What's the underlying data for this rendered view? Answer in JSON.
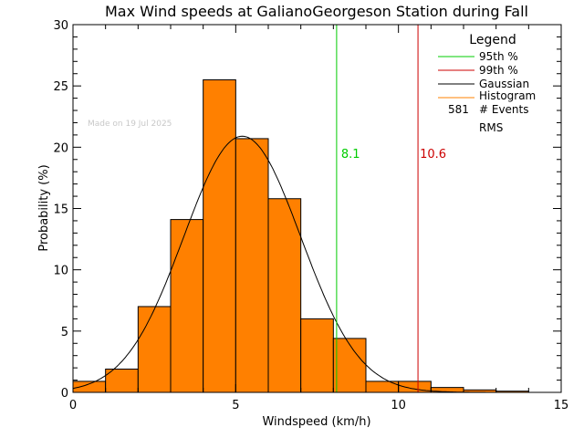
{
  "colors": {
    "bar_fill": "#ff8000",
    "p95_line": "#00cc00",
    "p99_line": "#cc0000",
    "gaussian": "#000000",
    "histogram_legend": "#ff8000",
    "axes": "#000000",
    "watermark": "#c8c8c8"
  },
  "chart_data": {
    "type": "bar",
    "title": "Max Wind speeds at GalianoGeorgeson Station during Fall",
    "xlabel": "Windspeed (km/h)",
    "ylabel": "Probability  (%)",
    "xlim": [
      0,
      15
    ],
    "ylim": [
      0,
      30
    ],
    "x_ticks": [
      0,
      5,
      10,
      15
    ],
    "y_ticks": [
      0,
      5,
      10,
      15,
      20,
      25,
      30
    ],
    "x_tick_labels": [
      "0",
      "5",
      "10",
      "15"
    ],
    "y_tick_labels": [
      "0",
      "5",
      "10",
      "15",
      "20",
      "25",
      "30"
    ],
    "bin_edges": [
      0,
      1,
      2,
      3,
      4,
      5,
      6,
      7,
      8,
      9,
      10,
      11,
      12,
      13,
      14
    ],
    "values": [
      0.9,
      1.9,
      7.0,
      14.1,
      25.5,
      20.7,
      15.8,
      6.0,
      4.4,
      0.9,
      0.9,
      0.4,
      0.2,
      0.1
    ],
    "gaussian": {
      "mean": 5.2,
      "peak": 20.9,
      "sigma": 1.8
    },
    "percentile_95": {
      "value": 8.1,
      "label": "8.1"
    },
    "percentile_99": {
      "value": 10.6,
      "label": "10.6"
    },
    "watermark": "Made on 19 Jul 2025",
    "legend": {
      "title": "Legend",
      "placement": "top-right",
      "entries": [
        "95th %",
        "99th %",
        "Gaussian",
        "Histogram"
      ],
      "events_count": "581",
      "events_label": "# Events",
      "rms_label": "RMS"
    },
    "grid": false
  }
}
